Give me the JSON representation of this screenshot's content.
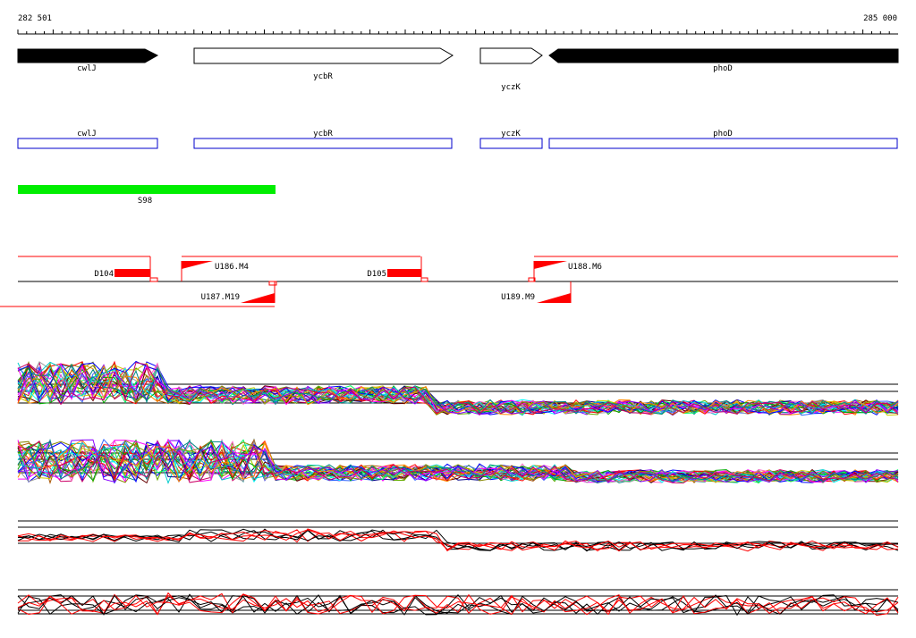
{
  "ruler": {
    "start_label": "282 501",
    "end_label": "285 000"
  },
  "genes_arrows": [
    {
      "name": "cwlJ",
      "strand": "+",
      "filled": true
    },
    {
      "name": "ycbR",
      "strand": "+",
      "filled": false
    },
    {
      "name": "yczK",
      "strand": "+",
      "filled": false
    },
    {
      "name": "phoD",
      "strand": "-",
      "filled": true
    }
  ],
  "genes_boxes": [
    {
      "name": "cwlJ"
    },
    {
      "name": "ycbR"
    },
    {
      "name": "yczK"
    },
    {
      "name": "phoD"
    }
  ],
  "segments": [
    {
      "name": "S98",
      "color": "#00ee00"
    }
  ],
  "features": [
    {
      "name": "D104",
      "type": "down-block"
    },
    {
      "name": "U186.M4",
      "type": "up-flag"
    },
    {
      "name": "D105",
      "type": "down-block"
    },
    {
      "name": "U188.M6",
      "type": "up-flag"
    },
    {
      "name": "U187.M19",
      "type": "up-flag-reverse"
    },
    {
      "name": "U189.M9",
      "type": "up-flag-reverse"
    }
  ],
  "colors": {
    "feature": "#ff0000",
    "gene_box_border": "#0000cc",
    "segment": "#00ee00",
    "baseline": "#000000"
  },
  "expression_panels": [
    {
      "name": "panel-1",
      "description": "many colored expression profiles"
    },
    {
      "name": "panel-2",
      "description": "many colored expression profiles"
    },
    {
      "name": "panel-3",
      "description": "black and red expression profiles"
    },
    {
      "name": "panel-4",
      "description": "black and red expression profiles"
    }
  ]
}
